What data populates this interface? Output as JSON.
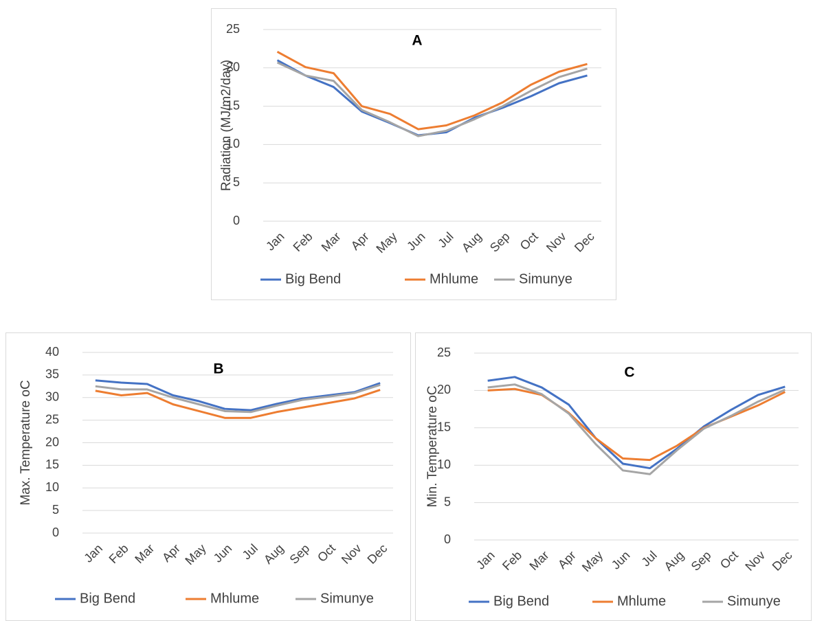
{
  "chart_data": [
    {
      "type": "line",
      "title": "A",
      "y_label": "Radiation (MJ/m2/day)",
      "categories": [
        "Jan",
        "Feb",
        "Mar",
        "Apr",
        "May",
        "Jun",
        "Jul",
        "Aug",
        "Sep",
        "Oct",
        "Nov",
        "Dec"
      ],
      "series": [
        {
          "name": "Big Bend",
          "color": "#4472c4",
          "values": [
            21,
            19,
            17.5,
            14.3,
            12.8,
            11.2,
            11.6,
            13.5,
            14.8,
            16.3,
            18,
            19
          ]
        },
        {
          "name": "Mhlume",
          "color": "#ed7d31",
          "values": [
            22.1,
            20.1,
            19.3,
            15,
            14,
            12,
            12.5,
            13.8,
            15.5,
            17.8,
            19.5,
            20.5
          ]
        },
        {
          "name": "Simunye",
          "color": "#a5a5a5",
          "values": [
            20.7,
            19,
            18.3,
            14.5,
            12.9,
            11.1,
            11.8,
            13.3,
            15,
            17,
            18.8,
            19.9
          ]
        }
      ],
      "ylim": [
        0,
        25
      ],
      "yticks": [
        0,
        5,
        10,
        15,
        20,
        25
      ],
      "grid": true
    },
    {
      "type": "line",
      "title": "B",
      "y_label": "Max. Temperature oC",
      "categories": [
        "Jan",
        "Feb",
        "Mar",
        "Apr",
        "May",
        "Jun",
        "Jul",
        "Aug",
        "Sep",
        "Oct",
        "Nov",
        "Dec"
      ],
      "series": [
        {
          "name": "Big Bend",
          "color": "#4472c4",
          "values": [
            33.8,
            33.3,
            33,
            30.5,
            29.2,
            27.5,
            27.2,
            28.6,
            29.8,
            30.5,
            31.2,
            33.2
          ]
        },
        {
          "name": "Mhlume",
          "color": "#ed7d31",
          "values": [
            31.5,
            30.5,
            31,
            28.5,
            27,
            25.5,
            25.5,
            26.8,
            27.8,
            28.8,
            29.8,
            31.7
          ]
        },
        {
          "name": "Simunye",
          "color": "#a5a5a5",
          "values": [
            32.5,
            31.8,
            31.8,
            30,
            28.5,
            27,
            26.8,
            28.2,
            29.5,
            30.2,
            31,
            32.8
          ]
        }
      ],
      "ylim": [
        0,
        40
      ],
      "yticks": [
        0,
        5,
        10,
        15,
        20,
        25,
        30,
        35,
        40
      ],
      "grid": true
    },
    {
      "type": "line",
      "title": "C",
      "y_label": "Min. Temperature oC",
      "categories": [
        "Jan",
        "Feb",
        "Mar",
        "Apr",
        "May",
        "Jun",
        "Jul",
        "Aug",
        "Sep",
        "Oct",
        "Nov",
        "Dec"
      ],
      "series": [
        {
          "name": "Big Bend",
          "color": "#4472c4",
          "values": [
            21.3,
            21.8,
            20.4,
            18.1,
            13.6,
            10.2,
            9.6,
            12.2,
            15.2,
            17.4,
            19.4,
            20.5
          ]
        },
        {
          "name": "Mhlume",
          "color": "#ed7d31",
          "values": [
            20,
            20.2,
            19.4,
            17,
            13.6,
            10.9,
            10.7,
            12.6,
            15,
            16.5,
            18,
            19.8
          ]
        },
        {
          "name": "Simunye",
          "color": "#a5a5a5",
          "values": [
            20.4,
            20.8,
            19.5,
            16.9,
            12.8,
            9.3,
            8.8,
            12,
            14.9,
            16.6,
            18.5,
            20.1
          ]
        }
      ],
      "ylim": [
        0,
        25
      ],
      "yticks": [
        0,
        5,
        10,
        15,
        20,
        25
      ],
      "grid": true
    }
  ]
}
